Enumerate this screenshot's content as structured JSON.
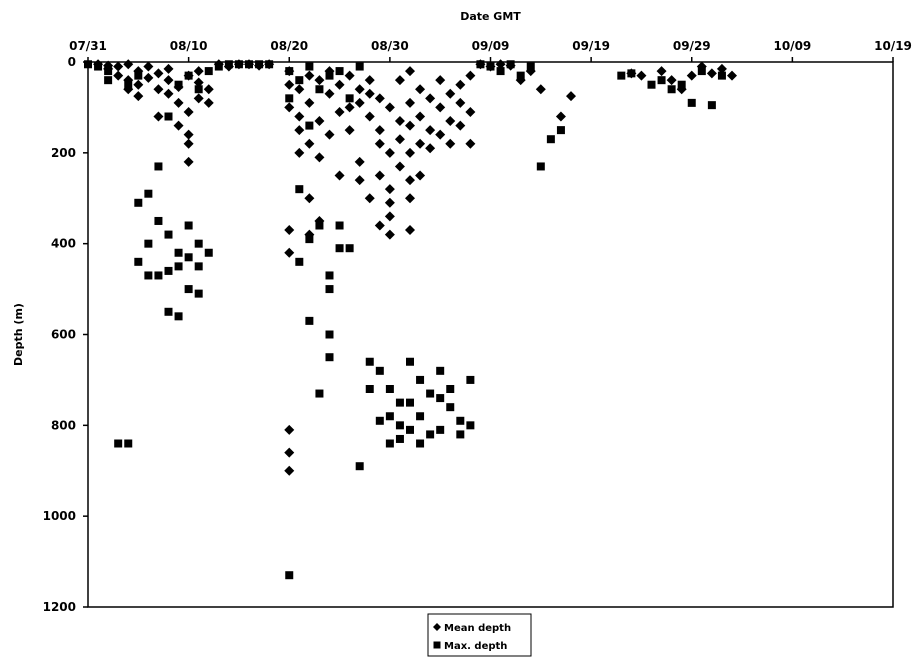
{
  "chart_data": {
    "type": "scatter",
    "title": "",
    "xlabel": "Date GMT",
    "ylabel": "Depth (m)",
    "x_axis_position": "top",
    "y_axis_inverted": true,
    "x_tick_labels": [
      "07/31",
      "08/10",
      "08/20",
      "08/30",
      "09/09",
      "09/19",
      "09/29",
      "10/09",
      "10/19"
    ],
    "xlim": [
      "07/31",
      "10/19"
    ],
    "y_ticks": [
      0,
      200,
      400,
      600,
      800,
      1000,
      1200
    ],
    "ylim": [
      0,
      1200
    ],
    "grid": false,
    "legend": {
      "position": "bottom-center",
      "entries": [
        "Mean depth",
        "Max. depth"
      ]
    },
    "series": [
      {
        "name": "Mean depth",
        "marker": "diamond",
        "color": "#000000",
        "points": [
          [
            "08/01",
            5
          ],
          [
            "08/02",
            8
          ],
          [
            "08/02",
            15
          ],
          [
            "08/03",
            10
          ],
          [
            "08/03",
            30
          ],
          [
            "08/04",
            5
          ],
          [
            "08/04",
            40
          ],
          [
            "08/04",
            60
          ],
          [
            "08/05",
            20
          ],
          [
            "08/05",
            50
          ],
          [
            "08/05",
            75
          ],
          [
            "08/06",
            10
          ],
          [
            "08/06",
            35
          ],
          [
            "08/07",
            25
          ],
          [
            "08/07",
            60
          ],
          [
            "08/07",
            120
          ],
          [
            "08/08",
            40
          ],
          [
            "08/08",
            15
          ],
          [
            "08/08",
            70
          ],
          [
            "08/09",
            90
          ],
          [
            "08/09",
            140
          ],
          [
            "08/09",
            55
          ],
          [
            "08/10",
            30
          ],
          [
            "08/10",
            110
          ],
          [
            "08/10",
            160
          ],
          [
            "08/10",
            180
          ],
          [
            "08/10",
            220
          ],
          [
            "08/11",
            45
          ],
          [
            "08/11",
            80
          ],
          [
            "08/11",
            20
          ],
          [
            "08/12",
            60
          ],
          [
            "08/12",
            90
          ],
          [
            "08/13",
            5
          ],
          [
            "08/14",
            10
          ],
          [
            "08/15",
            5
          ],
          [
            "08/16",
            5
          ],
          [
            "08/17",
            8
          ],
          [
            "08/18",
            5
          ],
          [
            "08/20",
            20
          ],
          [
            "08/20",
            50
          ],
          [
            "08/20",
            100
          ],
          [
            "08/20",
            370
          ],
          [
            "08/20",
            420
          ],
          [
            "08/20",
            810
          ],
          [
            "08/20",
            860
          ],
          [
            "08/20",
            900
          ],
          [
            "08/21",
            60
          ],
          [
            "08/21",
            120
          ],
          [
            "08/21",
            150
          ],
          [
            "08/21",
            200
          ],
          [
            "08/22",
            30
          ],
          [
            "08/22",
            90
          ],
          [
            "08/22",
            180
          ],
          [
            "08/22",
            300
          ],
          [
            "08/22",
            380
          ],
          [
            "08/23",
            40
          ],
          [
            "08/23",
            130
          ],
          [
            "08/23",
            210
          ],
          [
            "08/23",
            350
          ],
          [
            "08/24",
            20
          ],
          [
            "08/24",
            70
          ],
          [
            "08/24",
            160
          ],
          [
            "08/25",
            50
          ],
          [
            "08/25",
            110
          ],
          [
            "08/25",
            250
          ],
          [
            "08/26",
            30
          ],
          [
            "08/26",
            100
          ],
          [
            "08/26",
            150
          ],
          [
            "08/27",
            60
          ],
          [
            "08/27",
            90
          ],
          [
            "08/27",
            220
          ],
          [
            "08/27",
            260
          ],
          [
            "08/28",
            40
          ],
          [
            "08/28",
            70
          ],
          [
            "08/28",
            120
          ],
          [
            "08/28",
            300
          ],
          [
            "08/29",
            80
          ],
          [
            "08/29",
            150
          ],
          [
            "08/29",
            180
          ],
          [
            "08/29",
            250
          ],
          [
            "08/29",
            360
          ],
          [
            "08/30",
            100
          ],
          [
            "08/30",
            200
          ],
          [
            "08/30",
            280
          ],
          [
            "08/30",
            310
          ],
          [
            "08/30",
            340
          ],
          [
            "08/30",
            380
          ],
          [
            "08/31",
            40
          ],
          [
            "08/31",
            130
          ],
          [
            "08/31",
            170
          ],
          [
            "08/31",
            230
          ],
          [
            "09/01",
            20
          ],
          [
            "09/01",
            90
          ],
          [
            "09/01",
            140
          ],
          [
            "09/01",
            200
          ],
          [
            "09/01",
            260
          ],
          [
            "09/01",
            300
          ],
          [
            "09/01",
            370
          ],
          [
            "09/02",
            60
          ],
          [
            "09/02",
            120
          ],
          [
            "09/02",
            180
          ],
          [
            "09/02",
            250
          ],
          [
            "09/03",
            80
          ],
          [
            "09/03",
            150
          ],
          [
            "09/03",
            190
          ],
          [
            "09/04",
            40
          ],
          [
            "09/04",
            100
          ],
          [
            "09/04",
            160
          ],
          [
            "09/05",
            70
          ],
          [
            "09/05",
            130
          ],
          [
            "09/05",
            180
          ],
          [
            "09/06",
            50
          ],
          [
            "09/06",
            90
          ],
          [
            "09/06",
            140
          ],
          [
            "09/07",
            30
          ],
          [
            "09/07",
            110
          ],
          [
            "09/07",
            180
          ],
          [
            "09/08",
            5
          ],
          [
            "09/09",
            10
          ],
          [
            "09/10",
            5
          ],
          [
            "09/11",
            8
          ],
          [
            "09/12",
            40
          ],
          [
            "09/13",
            20
          ],
          [
            "09/14",
            60
          ],
          [
            "09/16",
            120
          ],
          [
            "09/17",
            75
          ],
          [
            "09/23",
            25
          ],
          [
            "09/24",
            30
          ],
          [
            "09/26",
            20
          ],
          [
            "09/27",
            40
          ],
          [
            "09/28",
            60
          ],
          [
            "09/29",
            30
          ],
          [
            "09/30",
            10
          ],
          [
            "10/01",
            25
          ],
          [
            "10/02",
            15
          ],
          [
            "10/03",
            30
          ]
        ]
      },
      {
        "name": "Max. depth",
        "marker": "square",
        "color": "#000000",
        "points": [
          [
            "07/31",
            5
          ],
          [
            "08/01",
            10
          ],
          [
            "08/02",
            40
          ],
          [
            "08/02",
            20
          ],
          [
            "08/03",
            840
          ],
          [
            "08/04",
            50
          ],
          [
            "08/04",
            840
          ],
          [
            "08/05",
            30
          ],
          [
            "08/05",
            310
          ],
          [
            "08/05",
            440
          ],
          [
            "08/06",
            290
          ],
          [
            "08/06",
            400
          ],
          [
            "08/06",
            470
          ],
          [
            "08/07",
            230
          ],
          [
            "08/07",
            350
          ],
          [
            "08/07",
            470
          ],
          [
            "08/08",
            120
          ],
          [
            "08/08",
            380
          ],
          [
            "08/08",
            460
          ],
          [
            "08/08",
            550
          ],
          [
            "08/09",
            50
          ],
          [
            "08/09",
            420
          ],
          [
            "08/09",
            450
          ],
          [
            "08/09",
            560
          ],
          [
            "08/10",
            30
          ],
          [
            "08/10",
            360
          ],
          [
            "08/10",
            430
          ],
          [
            "08/10",
            500
          ],
          [
            "08/11",
            60
          ],
          [
            "08/11",
            400
          ],
          [
            "08/11",
            450
          ],
          [
            "08/11",
            510
          ],
          [
            "08/12",
            20
          ],
          [
            "08/12",
            420
          ],
          [
            "08/13",
            10
          ],
          [
            "08/14",
            5
          ],
          [
            "08/15",
            5
          ],
          [
            "08/16",
            5
          ],
          [
            "08/17",
            5
          ],
          [
            "08/18",
            5
          ],
          [
            "08/20",
            20
          ],
          [
            "08/20",
            80
          ],
          [
            "08/20",
            1130
          ],
          [
            "08/21",
            40
          ],
          [
            "08/21",
            280
          ],
          [
            "08/21",
            440
          ],
          [
            "08/22",
            10
          ],
          [
            "08/22",
            140
          ],
          [
            "08/22",
            390
          ],
          [
            "08/22",
            570
          ],
          [
            "08/23",
            60
          ],
          [
            "08/23",
            360
          ],
          [
            "08/23",
            730
          ],
          [
            "08/24",
            30
          ],
          [
            "08/24",
            470
          ],
          [
            "08/24",
            500
          ],
          [
            "08/24",
            600
          ],
          [
            "08/24",
            650
          ],
          [
            "08/25",
            20
          ],
          [
            "08/25",
            360
          ],
          [
            "08/25",
            410
          ],
          [
            "08/26",
            80
          ],
          [
            "08/26",
            410
          ],
          [
            "08/27",
            10
          ],
          [
            "08/27",
            890
          ],
          [
            "08/28",
            660
          ],
          [
            "08/28",
            720
          ],
          [
            "08/29",
            680
          ],
          [
            "08/29",
            790
          ],
          [
            "08/30",
            720
          ],
          [
            "08/30",
            780
          ],
          [
            "08/30",
            840
          ],
          [
            "08/31",
            750
          ],
          [
            "08/31",
            800
          ],
          [
            "08/31",
            830
          ],
          [
            "09/01",
            660
          ],
          [
            "09/01",
            750
          ],
          [
            "09/01",
            810
          ],
          [
            "09/02",
            700
          ],
          [
            "09/02",
            780
          ],
          [
            "09/02",
            840
          ],
          [
            "09/03",
            730
          ],
          [
            "09/03",
            820
          ],
          [
            "09/04",
            680
          ],
          [
            "09/04",
            740
          ],
          [
            "09/04",
            810
          ],
          [
            "09/05",
            720
          ],
          [
            "09/05",
            760
          ],
          [
            "09/06",
            790
          ],
          [
            "09/06",
            820
          ],
          [
            "09/07",
            700
          ],
          [
            "09/07",
            800
          ],
          [
            "09/08",
            5
          ],
          [
            "09/09",
            10
          ],
          [
            "09/10",
            20
          ],
          [
            "09/11",
            5
          ],
          [
            "09/12",
            30
          ],
          [
            "09/13",
            10
          ],
          [
            "09/14",
            230
          ],
          [
            "09/15",
            170
          ],
          [
            "09/16",
            150
          ],
          [
            "09/22",
            30
          ],
          [
            "09/23",
            25
          ],
          [
            "09/25",
            50
          ],
          [
            "09/26",
            40
          ],
          [
            "09/27",
            60
          ],
          [
            "09/28",
            50
          ],
          [
            "09/29",
            90
          ],
          [
            "09/30",
            20
          ],
          [
            "10/01",
            95
          ],
          [
            "10/02",
            30
          ]
        ]
      }
    ]
  }
}
